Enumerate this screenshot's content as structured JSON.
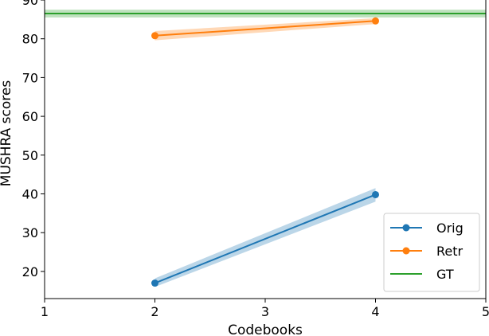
{
  "chart_data": {
    "type": "line",
    "title": "",
    "xlabel": "Codebooks",
    "ylabel": "MUSHRA scores",
    "xlim": [
      1,
      5
    ],
    "ylim": [
      13,
      90
    ],
    "xticks": [
      1,
      2,
      3,
      4,
      5
    ],
    "yticks": [
      20,
      30,
      40,
      50,
      60,
      70,
      80,
      90
    ],
    "grid": false,
    "legend_position": "lower-right",
    "series": [
      {
        "name": "Orig",
        "color": "#1f77b4",
        "marker": "circle",
        "x": [
          2,
          4
        ],
        "y": [
          17,
          39.8
        ],
        "band_low": [
          16,
          38
        ],
        "band_high": [
          18.2,
          41.5
        ]
      },
      {
        "name": "Retr",
        "color": "#ff7f0e",
        "marker": "circle",
        "x": [
          2,
          4
        ],
        "y": [
          80.8,
          84.6
        ],
        "band_low": [
          79.6,
          83.8
        ],
        "band_high": [
          82,
          85.3
        ]
      },
      {
        "name": "GT",
        "color": "#2ca02c",
        "marker": "none",
        "type": "hline",
        "y": 86.5,
        "band_low": 85.5,
        "band_high": 87.5
      }
    ]
  }
}
